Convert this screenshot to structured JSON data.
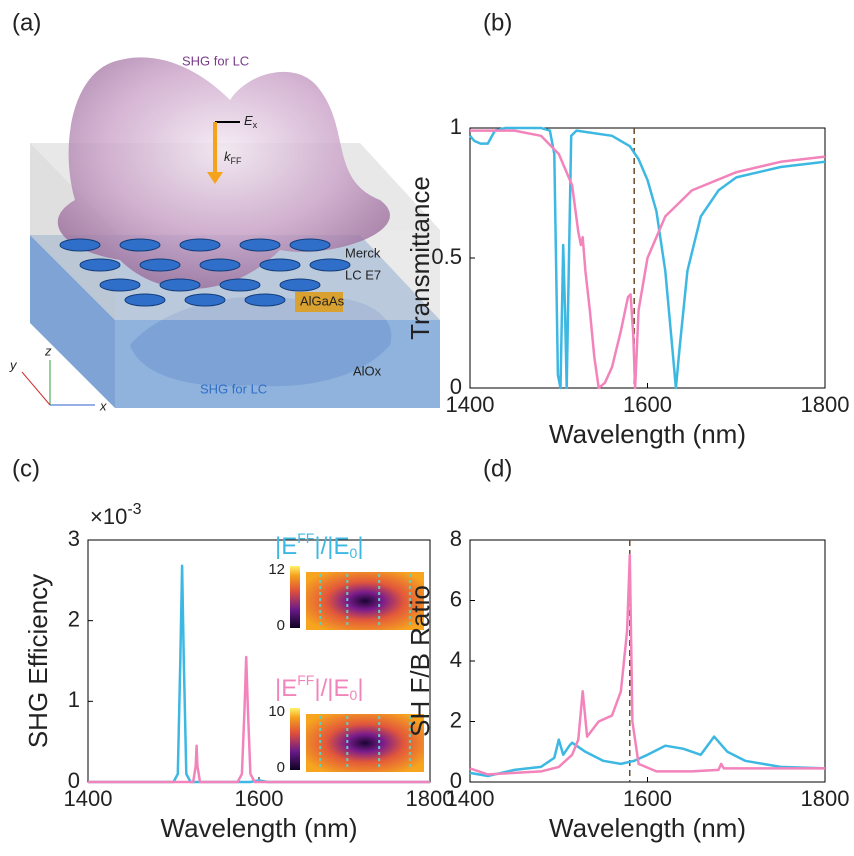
{
  "illustration": {
    "label": "(a)",
    "texts": {
      "shg_top": "SHG for LC",
      "ex_base": "E",
      "ex_sub": "x",
      "kff_base": "k",
      "kff_sub": "FF",
      "lc_line1": "Merck",
      "lc_line2": "LC E7",
      "algaas": "AlGaAs",
      "alox": "AlOx",
      "shg_bottom": "SHG for LC",
      "axis_x": "x",
      "axis_y": "y",
      "axis_z": "z"
    }
  },
  "chart_data": [
    {
      "type": "line",
      "label": "(b)",
      "x_label": "Wavelength (nm)",
      "y_label": "Transmittance",
      "xlim": [
        1400,
        1800
      ],
      "xticks": [
        1400,
        1600,
        1800
      ],
      "ylim": [
        0,
        1
      ],
      "yticks": [
        0,
        0.5,
        1
      ],
      "reference_line_x": 1585,
      "reference_color": "#6b4a2a",
      "series": [
        {
          "color": "#3db8e3",
          "x": [
            1400,
            1405,
            1412,
            1420,
            1428,
            1440,
            1480,
            1490,
            1495,
            1499,
            1502,
            1505,
            1507,
            1509,
            1511,
            1514,
            1520,
            1560,
            1580,
            1590,
            1600,
            1610,
            1620,
            1628,
            1632,
            1636,
            1645,
            1660,
            1680,
            1700,
            1750,
            1800
          ],
          "values": [
            0.97,
            0.95,
            0.94,
            0.94,
            0.99,
            1,
            1,
            0.99,
            0.9,
            0.05,
            0,
            0.55,
            0.3,
            0,
            0.4,
            0.97,
            0.99,
            0.97,
            0.93,
            0.88,
            0.8,
            0.68,
            0.45,
            0.15,
            0,
            0.15,
            0.45,
            0.66,
            0.76,
            0.81,
            0.85,
            0.87
          ]
        },
        {
          "color": "#f384bb",
          "x": [
            1400,
            1450,
            1480,
            1500,
            1515,
            1522,
            1525,
            1527,
            1530,
            1535,
            1540,
            1545,
            1552,
            1560,
            1570,
            1578,
            1581,
            1584,
            1586,
            1590,
            1600,
            1620,
            1650,
            1700,
            1750,
            1800
          ],
          "values": [
            0.99,
            0.99,
            0.97,
            0.9,
            0.78,
            0.6,
            0.55,
            0.58,
            0.45,
            0.3,
            0.12,
            0,
            0.02,
            0.08,
            0.22,
            0.35,
            0.36,
            0.2,
            0,
            0.3,
            0.5,
            0.66,
            0.76,
            0.83,
            0.87,
            0.89
          ]
        }
      ]
    },
    {
      "type": "line",
      "label": "(c)",
      "x_label": "Wavelength (nm)",
      "y_label": "SHG Efficiency",
      "multiplier": {
        "base": "×10",
        "exponent": "-3"
      },
      "xlim": [
        1400,
        1800
      ],
      "xticks": [
        1400,
        1600,
        1800
      ],
      "ylim": [
        0,
        3
      ],
      "yticks": [
        0,
        1,
        2,
        3
      ],
      "insets": [
        {
          "title": [
            "|E",
            "FF",
            "|/|E",
            "0",
            "|"
          ],
          "color": "#3db8e3",
          "colorbar_ticks": [
            12,
            0
          ]
        },
        {
          "title": [
            "|E",
            "FF",
            "|/|E",
            "0",
            "|"
          ],
          "color": "#f384bb",
          "colorbar_ticks": [
            10,
            0
          ]
        }
      ],
      "series": [
        {
          "color": "#3db8e3",
          "x": [
            1400,
            1500,
            1505,
            1508,
            1510,
            1512,
            1515,
            1520,
            1590,
            1600,
            1610,
            1700,
            1800
          ],
          "values": [
            0,
            0,
            0.1,
            1.5,
            2.68,
            1.5,
            0.1,
            0,
            0,
            0.02,
            0,
            0,
            0
          ]
        },
        {
          "color": "#f384bb",
          "x": [
            1400,
            1523,
            1526,
            1527,
            1528,
            1531,
            1575,
            1580,
            1583,
            1585,
            1587,
            1590,
            1595,
            1800
          ],
          "values": [
            0,
            0,
            0.2,
            0.45,
            0.2,
            0,
            0,
            0.1,
            0.9,
            1.55,
            0.9,
            0.1,
            0,
            0
          ]
        }
      ]
    },
    {
      "type": "line",
      "label": "(d)",
      "x_label": "Wavelength (nm)",
      "y_label": "SH F/B Ratio",
      "xlim": [
        1400,
        1800
      ],
      "xticks": [
        1400,
        1600,
        1800
      ],
      "ylim": [
        0,
        8
      ],
      "yticks": [
        0,
        2,
        4,
        6,
        8
      ],
      "reference_line_x": 1580,
      "reference_color": "#6b4a2a",
      "series": [
        {
          "color": "#3db8e3",
          "x": [
            1400,
            1420,
            1450,
            1480,
            1495,
            1500,
            1505,
            1512,
            1515,
            1530,
            1550,
            1570,
            1585,
            1600,
            1620,
            1640,
            1660,
            1675,
            1690,
            1710,
            1750,
            1800
          ],
          "values": [
            0.3,
            0.2,
            0.4,
            0.5,
            0.8,
            1.4,
            0.9,
            1.2,
            1.3,
            1.0,
            0.7,
            0.6,
            0.7,
            0.9,
            1.2,
            1.1,
            0.9,
            1.5,
            1.0,
            0.7,
            0.5,
            0.45
          ]
        },
        {
          "color": "#f384bb",
          "x": [
            1400,
            1420,
            1450,
            1480,
            1500,
            1515,
            1522,
            1527,
            1532,
            1545,
            1560,
            1570,
            1577,
            1580,
            1583,
            1590,
            1610,
            1650,
            1680,
            1683,
            1686,
            1690,
            1800
          ],
          "values": [
            0.45,
            0.25,
            0.3,
            0.35,
            0.5,
            0.9,
            1.4,
            3.0,
            1.5,
            2.0,
            2.2,
            3.0,
            5.0,
            7.5,
            2.0,
            0.6,
            0.35,
            0.35,
            0.4,
            0.6,
            0.45,
            0.45,
            0.45
          ]
        }
      ]
    }
  ]
}
